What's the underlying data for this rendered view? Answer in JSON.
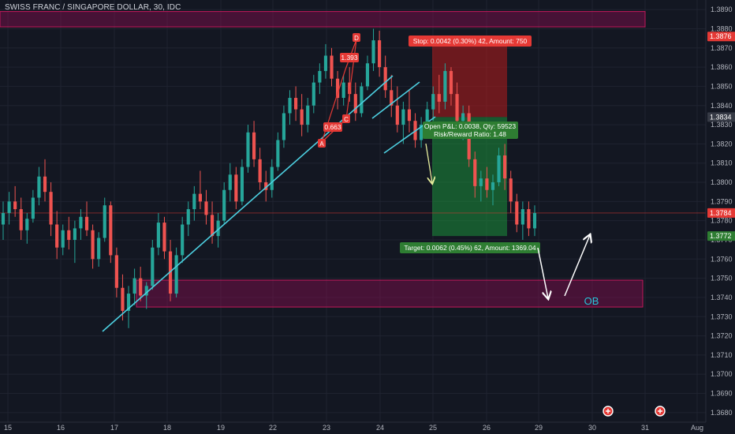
{
  "header": {
    "title": "SWISS FRANC / SINGAPORE DOLLAR, 30, IDC"
  },
  "colors": {
    "background": "#131722",
    "bull": "#26a69a",
    "bear": "#ef5350",
    "trendline": "#4dd0e1",
    "zone": "#880e4f",
    "profit": "#1b8f3a",
    "loss": "#b71c1c"
  },
  "chart_data": {
    "type": "candlestick",
    "ylim": [
      1.3675,
      1.3895
    ],
    "y_ticks": [
      "1.3680",
      "1.3690",
      "1.3700",
      "1.3710",
      "1.3720",
      "1.3730",
      "1.3740",
      "1.3750",
      "1.3760",
      "1.3770",
      "1.3780",
      "1.3790",
      "1.3800",
      "1.3810",
      "1.3820",
      "1.3830",
      "1.3840",
      "1.3850",
      "1.3860",
      "1.3870",
      "1.3880",
      "1.3890"
    ],
    "x_ticks": [
      "15",
      "16",
      "17",
      "18",
      "19",
      "22",
      "23",
      "24",
      "25",
      "26",
      "29",
      "30",
      "31",
      "Aug"
    ],
    "price_markers": [
      {
        "label": "1.3876",
        "value": 1.3876,
        "color": "#e53935"
      },
      {
        "label": "1.3834",
        "value": 1.3834,
        "color": "#363a45"
      },
      {
        "label": "1.3784",
        "value": 1.3784,
        "color": "#e53935"
      },
      {
        "label": "1.3772",
        "value": 1.3772,
        "color": "#2e7d32"
      }
    ],
    "candles": [
      [
        1.3778,
        1.379,
        1.377,
        1.3784
      ],
      [
        1.3784,
        1.3795,
        1.3778,
        1.379
      ],
      [
        1.379,
        1.3798,
        1.3782,
        1.3786
      ],
      [
        1.3786,
        1.3792,
        1.377,
        1.3775
      ],
      [
        1.3775,
        1.3784,
        1.3768,
        1.3781
      ],
      [
        1.3781,
        1.3796,
        1.3779,
        1.3792
      ],
      [
        1.3792,
        1.3808,
        1.3788,
        1.3803
      ],
      [
        1.3803,
        1.3812,
        1.379,
        1.3795
      ],
      [
        1.3795,
        1.38,
        1.3772,
        1.3778
      ],
      [
        1.3778,
        1.3785,
        1.376,
        1.3766
      ],
      [
        1.3766,
        1.3778,
        1.3762,
        1.3775
      ],
      [
        1.3775,
        1.3782,
        1.3765,
        1.377
      ],
      [
        1.377,
        1.378,
        1.3758,
        1.3776
      ],
      [
        1.3776,
        1.3786,
        1.377,
        1.3782
      ],
      [
        1.3782,
        1.379,
        1.3772,
        1.3775
      ],
      [
        1.3775,
        1.3778,
        1.3755,
        1.376
      ],
      [
        1.376,
        1.3774,
        1.3756,
        1.3771
      ],
      [
        1.3771,
        1.3792,
        1.3769,
        1.3788
      ],
      [
        1.3788,
        1.379,
        1.3758,
        1.3762
      ],
      [
        1.3762,
        1.3766,
        1.374,
        1.3745
      ],
      [
        1.3745,
        1.3752,
        1.3728,
        1.3733
      ],
      [
        1.3733,
        1.3746,
        1.3724,
        1.3742
      ],
      [
        1.3742,
        1.3755,
        1.3736,
        1.375
      ],
      [
        1.375,
        1.3756,
        1.3738,
        1.3741
      ],
      [
        1.3741,
        1.3748,
        1.3734,
        1.3746
      ],
      [
        1.3746,
        1.377,
        1.3744,
        1.3766
      ],
      [
        1.3766,
        1.3784,
        1.3762,
        1.3779
      ],
      [
        1.3779,
        1.3782,
        1.376,
        1.3764
      ],
      [
        1.3764,
        1.377,
        1.3738,
        1.3742
      ],
      [
        1.3742,
        1.3766,
        1.374,
        1.3762
      ],
      [
        1.3762,
        1.3782,
        1.3758,
        1.3778
      ],
      [
        1.3778,
        1.379,
        1.3772,
        1.3786
      ],
      [
        1.3786,
        1.3798,
        1.378,
        1.3794
      ],
      [
        1.3794,
        1.3806,
        1.3786,
        1.379
      ],
      [
        1.379,
        1.3796,
        1.3778,
        1.3783
      ],
      [
        1.3783,
        1.379,
        1.3768,
        1.3772
      ],
      [
        1.3772,
        1.3784,
        1.3766,
        1.378
      ],
      [
        1.378,
        1.38,
        1.3778,
        1.3796
      ],
      [
        1.3796,
        1.381,
        1.379,
        1.3804
      ],
      [
        1.3804,
        1.3808,
        1.3786,
        1.379
      ],
      [
        1.379,
        1.3812,
        1.3788,
        1.3808
      ],
      [
        1.3808,
        1.383,
        1.3805,
        1.3826
      ],
      [
        1.3826,
        1.3832,
        1.3808,
        1.3812
      ],
      [
        1.3812,
        1.3818,
        1.3796,
        1.38
      ],
      [
        1.38,
        1.3806,
        1.379,
        1.3796
      ],
      [
        1.3796,
        1.3812,
        1.3792,
        1.3808
      ],
      [
        1.3808,
        1.3826,
        1.3806,
        1.3822
      ],
      [
        1.3822,
        1.384,
        1.3818,
        1.3836
      ],
      [
        1.3836,
        1.3848,
        1.383,
        1.3844
      ],
      [
        1.3844,
        1.385,
        1.3832,
        1.3838
      ],
      [
        1.3838,
        1.3846,
        1.3824,
        1.383
      ],
      [
        1.383,
        1.3844,
        1.3826,
        1.384
      ],
      [
        1.384,
        1.3856,
        1.3836,
        1.3852
      ],
      [
        1.3852,
        1.3862,
        1.3846,
        1.3858
      ],
      [
        1.3858,
        1.3872,
        1.3854,
        1.3866
      ],
      [
        1.3866,
        1.387,
        1.385,
        1.3854
      ],
      [
        1.3854,
        1.3858,
        1.3838,
        1.3844
      ],
      [
        1.3844,
        1.3856,
        1.384,
        1.3852
      ],
      [
        1.3852,
        1.386,
        1.3842,
        1.3846
      ],
      [
        1.3846,
        1.3852,
        1.3832,
        1.3836
      ],
      [
        1.3836,
        1.3852,
        1.3834,
        1.385
      ],
      [
        1.385,
        1.3866,
        1.3848,
        1.3862
      ],
      [
        1.3862,
        1.388,
        1.3858,
        1.3874
      ],
      [
        1.3874,
        1.3879,
        1.3855,
        1.386
      ],
      [
        1.386,
        1.3866,
        1.3844,
        1.3848
      ],
      [
        1.3848,
        1.3856,
        1.3834,
        1.384
      ],
      [
        1.384,
        1.385,
        1.3826,
        1.383
      ],
      [
        1.383,
        1.3842,
        1.382,
        1.3838
      ],
      [
        1.3838,
        1.3848,
        1.3826,
        1.3832
      ],
      [
        1.3832,
        1.3836,
        1.3818,
        1.3822
      ],
      [
        1.3822,
        1.3834,
        1.3818,
        1.383
      ],
      [
        1.383,
        1.3842,
        1.3824,
        1.3838
      ],
      [
        1.3838,
        1.385,
        1.3832,
        1.3846
      ],
      [
        1.3846,
        1.3856,
        1.3836,
        1.3842
      ],
      [
        1.3842,
        1.3862,
        1.3838,
        1.3858
      ],
      [
        1.3858,
        1.386,
        1.384,
        1.3846
      ],
      [
        1.3846,
        1.3852,
        1.3826,
        1.3832
      ],
      [
        1.3832,
        1.384,
        1.3822,
        1.3836
      ],
      [
        1.3836,
        1.384,
        1.3808,
        1.3812
      ],
      [
        1.3812,
        1.3816,
        1.3792,
        1.3798
      ],
      [
        1.3798,
        1.3806,
        1.379,
        1.3802
      ],
      [
        1.3802,
        1.3808,
        1.3792,
        1.3796
      ],
      [
        1.3796,
        1.3804,
        1.3788,
        1.38
      ],
      [
        1.38,
        1.3818,
        1.3798,
        1.3814
      ],
      [
        1.3814,
        1.382,
        1.3796,
        1.3802
      ],
      [
        1.3802,
        1.3806,
        1.3784,
        1.379
      ],
      [
        1.379,
        1.3794,
        1.3774,
        1.3778
      ],
      [
        1.3778,
        1.379,
        1.377,
        1.3786
      ],
      [
        1.3786,
        1.379,
        1.3772,
        1.3776
      ],
      [
        1.3776,
        1.3788,
        1.3772,
        1.3784
      ]
    ]
  },
  "annotations": {
    "stop_label": "Stop: 0.0042 (0.30%) 42, Amount: 750",
    "open_pl_label": "Open P&L: 0.0038, Qty: 59523",
    "risk_reward_label": "Risk/Reward Ratio: 1.48",
    "target_label": "Target: 0.0062 (0.45%) 62, Amount: 1369.04",
    "ob_label": "OB",
    "pattern_points": [
      {
        "label": "A"
      },
      {
        "label": "C"
      },
      {
        "label": "D"
      }
    ],
    "pattern_ratios": [
      "0.663",
      "1.393"
    ]
  }
}
